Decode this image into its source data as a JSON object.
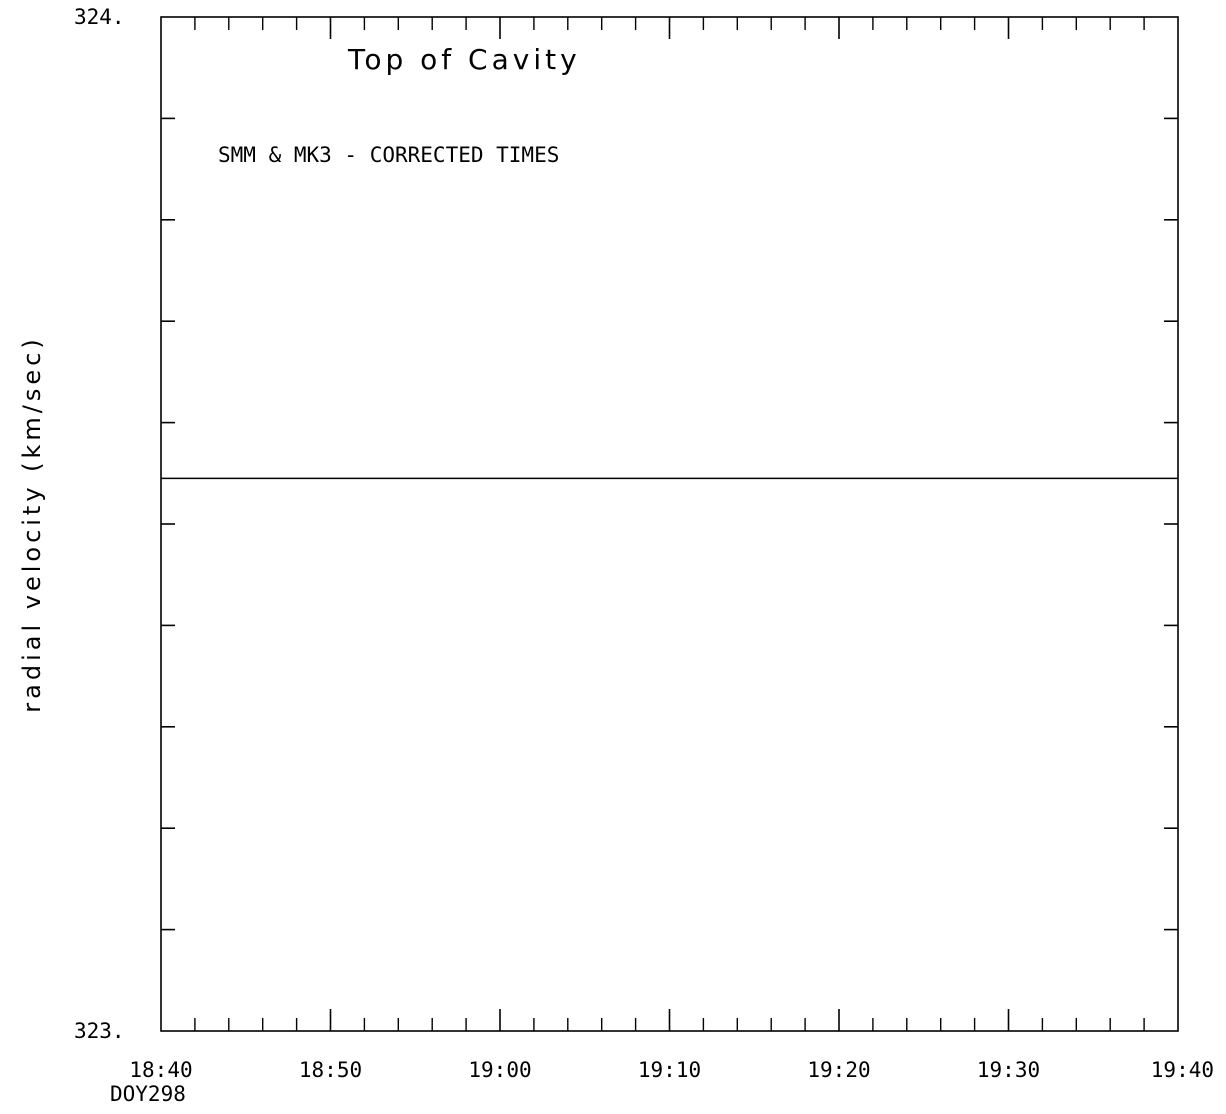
{
  "chart_data": {
    "type": "line",
    "title": "Top of Cavity",
    "annotation": "SMM & MK3 - CORRECTED TIMES",
    "ylabel": "radial velocity (km/sec)",
    "xlabel": "",
    "ylim": [
      323.0,
      324.0
    ],
    "xlim": [
      "18:40",
      "19:40"
    ],
    "y_tick_labels": [
      "324.",
      "323."
    ],
    "x_tick_labels": [
      "18:40",
      "18:50",
      "19:00",
      "19:10",
      "19:20",
      "19:30",
      "19:40"
    ],
    "x_sub_label": "DOY298",
    "grid": false,
    "series": [
      {
        "x": [
          "18:40",
          "19:40"
        ],
        "values": [
          323.545,
          323.545
        ]
      }
    ],
    "line_color": "#000000"
  }
}
